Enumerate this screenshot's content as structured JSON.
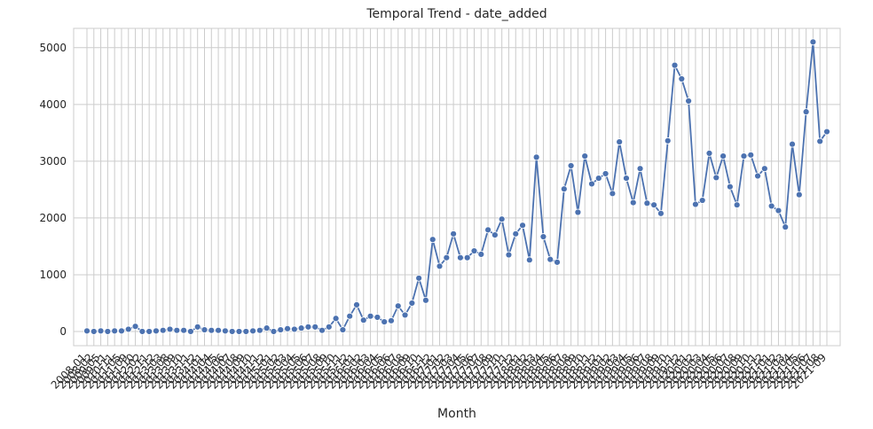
{
  "chart_data": {
    "type": "line",
    "title": "Temporal Trend - date_added",
    "x_label": "Month",
    "categories": [
      "2008-01",
      "2008-02",
      "2009-05",
      "2009-11",
      "2010-11",
      "2011-05",
      "2011-09",
      "2011-10",
      "2012-02",
      "2012-11",
      "2012-12",
      "2013-03",
      "2013-08",
      "2013-09",
      "2013-10",
      "2013-11",
      "2013-12",
      "2014-01",
      "2014-04",
      "2014-05",
      "2014-06",
      "2014-07",
      "2014-08",
      "2014-09",
      "2014-10",
      "2014-11",
      "2014-12",
      "2015-01",
      "2015-02",
      "2015-03",
      "2015-04",
      "2015-05",
      "2015-06",
      "2015-07",
      "2015-08",
      "2015-09",
      "2015-10",
      "2015-11",
      "2015-12",
      "2016-01",
      "2016-02",
      "2016-03",
      "2016-04",
      "2016-05",
      "2016-06",
      "2016-07",
      "2016-08",
      "2016-09",
      "2016-10",
      "2016-11",
      "2016-12",
      "2017-01",
      "2017-02",
      "2017-03",
      "2017-04",
      "2017-05",
      "2017-06",
      "2017-07",
      "2017-08",
      "2017-09",
      "2017-10",
      "2017-11",
      "2017-12",
      "2018-01",
      "2018-02",
      "2018-03",
      "2018-04",
      "2018-05",
      "2018-06",
      "2018-07",
      "2018-08",
      "2018-09",
      "2018-10",
      "2018-11",
      "2018-12",
      "2019-01",
      "2019-02",
      "2019-03",
      "2019-04",
      "2019-05",
      "2019-06",
      "2019-07",
      "2019-08",
      "2019-09",
      "2019-10",
      "2019-11",
      "2019-12",
      "2020-01",
      "2020-02",
      "2020-03",
      "2020-04",
      "2020-05",
      "2020-06",
      "2020-07",
      "2020-08",
      "2020-09",
      "2020-10",
      "2020-11",
      "2020-12",
      "2021-01",
      "2021-02",
      "2021-03",
      "2021-04",
      "2021-05",
      "2021-06",
      "2021-07",
      "2021-08",
      "2021-09"
    ],
    "series": [
      {
        "name": "date_added",
        "color": "#4c72b0",
        "values": [
          10,
          0,
          10,
          0,
          10,
          10,
          40,
          90,
          0,
          0,
          10,
          20,
          40,
          20,
          20,
          0,
          80,
          30,
          20,
          20,
          10,
          0,
          0,
          0,
          10,
          20,
          60,
          0,
          30,
          50,
          40,
          60,
          80,
          80,
          20,
          80,
          230,
          30,
          270,
          470,
          200,
          270,
          250,
          170,
          190,
          450,
          290,
          500,
          940,
          550,
          1620,
          1150,
          1300,
          1720,
          1300,
          1300,
          1420,
          1360,
          1790,
          1700,
          1980,
          1350,
          1720,
          1870,
          1260,
          3070,
          1670,
          1270,
          1220,
          2510,
          2920,
          2100,
          3090,
          2600,
          2700,
          2780,
          2430,
          3340,
          2700,
          2270,
          2870,
          2260,
          2230,
          2080,
          3360,
          4690,
          4450,
          4060,
          2240,
          2310,
          3140,
          2710,
          3090,
          2550,
          2230,
          3090,
          3110,
          2740,
          2870,
          2210,
          2130,
          1840,
          3300,
          2410,
          3870,
          5100,
          3350,
          3520
        ]
      }
    ],
    "ylim": [
      -250,
      5340
    ],
    "yticks": [
      0,
      1000,
      2000,
      3000,
      4000,
      5000
    ],
    "grid": true
  }
}
